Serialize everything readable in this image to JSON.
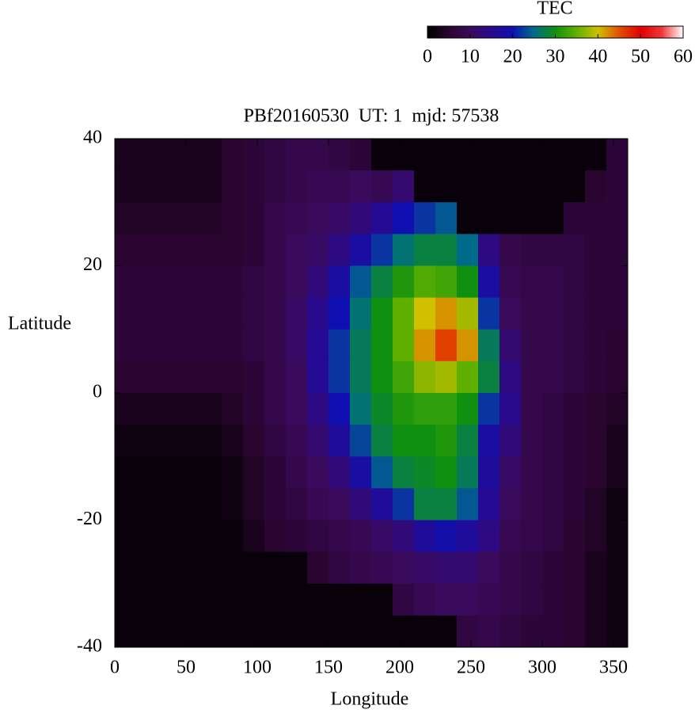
{
  "chart_data": {
    "type": "heatmap",
    "title": "PBf20160530  UT: 1  mjd: 57538",
    "x_label": "Longitude",
    "y_label": "Latitude",
    "colorbar_label": "TEC",
    "x": [
      7.5,
      22.5,
      37.5,
      52.5,
      67.5,
      82.5,
      97.5,
      112.5,
      127.5,
      142.5,
      157.5,
      172.5,
      187.5,
      202.5,
      217.5,
      232.5,
      247.5,
      262.5,
      277.5,
      292.5,
      307.5,
      322.5,
      337.5,
      352.5
    ],
    "y": [
      37.5,
      32.5,
      27.5,
      22.5,
      17.5,
      12.5,
      7.5,
      2.5,
      -2.5,
      -7.5,
      -12.5,
      -17.5,
      -22.5,
      -27.5,
      -32.5,
      -37.5
    ],
    "z": [
      [
        3,
        3,
        3,
        3,
        3,
        5,
        6,
        7,
        8,
        8,
        7,
        6,
        1,
        1,
        1,
        1,
        1,
        1,
        1,
        1,
        1,
        1,
        1,
        6
      ],
      [
        3,
        3,
        3,
        3,
        3,
        5,
        6,
        7,
        8,
        9,
        9,
        10,
        9,
        12,
        1,
        1,
        1,
        1,
        1,
        1,
        1,
        1,
        5,
        6
      ],
      [
        4,
        4,
        4,
        4,
        4,
        5,
        6,
        8,
        9,
        10,
        11,
        13,
        16,
        20,
        22,
        24,
        1,
        1,
        1,
        1,
        1,
        6,
        6,
        6
      ],
      [
        5,
        5,
        5,
        5,
        5,
        5,
        6,
        8,
        10,
        11,
        14,
        18,
        22,
        26,
        28,
        28,
        25,
        14,
        8,
        7,
        7,
        7,
        6,
        6
      ],
      [
        6,
        6,
        6,
        6,
        6,
        6,
        7,
        8,
        10,
        13,
        18,
        24,
        28,
        31,
        34,
        33,
        30,
        18,
        9,
        8,
        8,
        7,
        6,
        6
      ],
      [
        6,
        6,
        6,
        6,
        6,
        6,
        7,
        8,
        11,
        15,
        20,
        26,
        30,
        35,
        40,
        42,
        38,
        22,
        10,
        8,
        8,
        7,
        6,
        6
      ],
      [
        6,
        6,
        6,
        6,
        6,
        6,
        7,
        8,
        11,
        16,
        22,
        27,
        30,
        35,
        42,
        46,
        42,
        27,
        12,
        8,
        8,
        7,
        6,
        5
      ],
      [
        5,
        5,
        5,
        5,
        5,
        5,
        6,
        8,
        10,
        16,
        22,
        27,
        30,
        33,
        37,
        38,
        35,
        28,
        14,
        8,
        8,
        7,
        6,
        5
      ],
      [
        3,
        3,
        3,
        3,
        3,
        4,
        6,
        8,
        10,
        14,
        20,
        26,
        29,
        31,
        32,
        32,
        30,
        22,
        15,
        8,
        7,
        6,
        5,
        4
      ],
      [
        2,
        2,
        2,
        2,
        2,
        3,
        5,
        7,
        9,
        12,
        17,
        23,
        28,
        30,
        30,
        31,
        28,
        18,
        13,
        8,
        7,
        6,
        5,
        3
      ],
      [
        1,
        1,
        1,
        1,
        1,
        2,
        4,
        6,
        8,
        10,
        13,
        18,
        24,
        28,
        29,
        30,
        27,
        17,
        11,
        8,
        7,
        6,
        5,
        3
      ],
      [
        1,
        1,
        1,
        1,
        1,
        2,
        4,
        6,
        7,
        9,
        10,
        13,
        17,
        22,
        28,
        28,
        24,
        16,
        10,
        8,
        7,
        6,
        4,
        2
      ],
      [
        1,
        1,
        1,
        1,
        1,
        1,
        3,
        5,
        6,
        7,
        8,
        9,
        11,
        13,
        17,
        19,
        17,
        14,
        9,
        8,
        7,
        5,
        4,
        2
      ],
      [
        1,
        1,
        1,
        1,
        1,
        1,
        1,
        1,
        1,
        5,
        7,
        8,
        9,
        10,
        11,
        12,
        12,
        10,
        8,
        7,
        6,
        5,
        3,
        2
      ],
      [
        1,
        1,
        1,
        1,
        1,
        1,
        1,
        1,
        1,
        1,
        1,
        1,
        1,
        7,
        9,
        10,
        10,
        9,
        8,
        7,
        6,
        5,
        3,
        2
      ],
      [
        1,
        1,
        1,
        1,
        1,
        1,
        1,
        1,
        1,
        1,
        1,
        1,
        1,
        1,
        1,
        1,
        7,
        8,
        7,
        6,
        6,
        5,
        3,
        2
      ]
    ],
    "xlim": [
      0,
      360
    ],
    "xticks": [
      0,
      50,
      100,
      150,
      200,
      250,
      300,
      350
    ],
    "ylim": [
      -40,
      40
    ],
    "yticks": [
      -40,
      -20,
      0,
      20,
      40
    ],
    "zlim": [
      0,
      60
    ],
    "zticks": [
      0,
      10,
      20,
      30,
      40,
      50,
      60
    ],
    "colorscale": [
      "#000000",
      "#2a0530",
      "#3a0a5c",
      "#2a0a8c",
      "#1010b0",
      "#006a8a",
      "#109010",
      "#60b000",
      "#d0c000",
      "#e05000",
      "#e00000",
      "#f03838",
      "#ffffff"
    ]
  }
}
